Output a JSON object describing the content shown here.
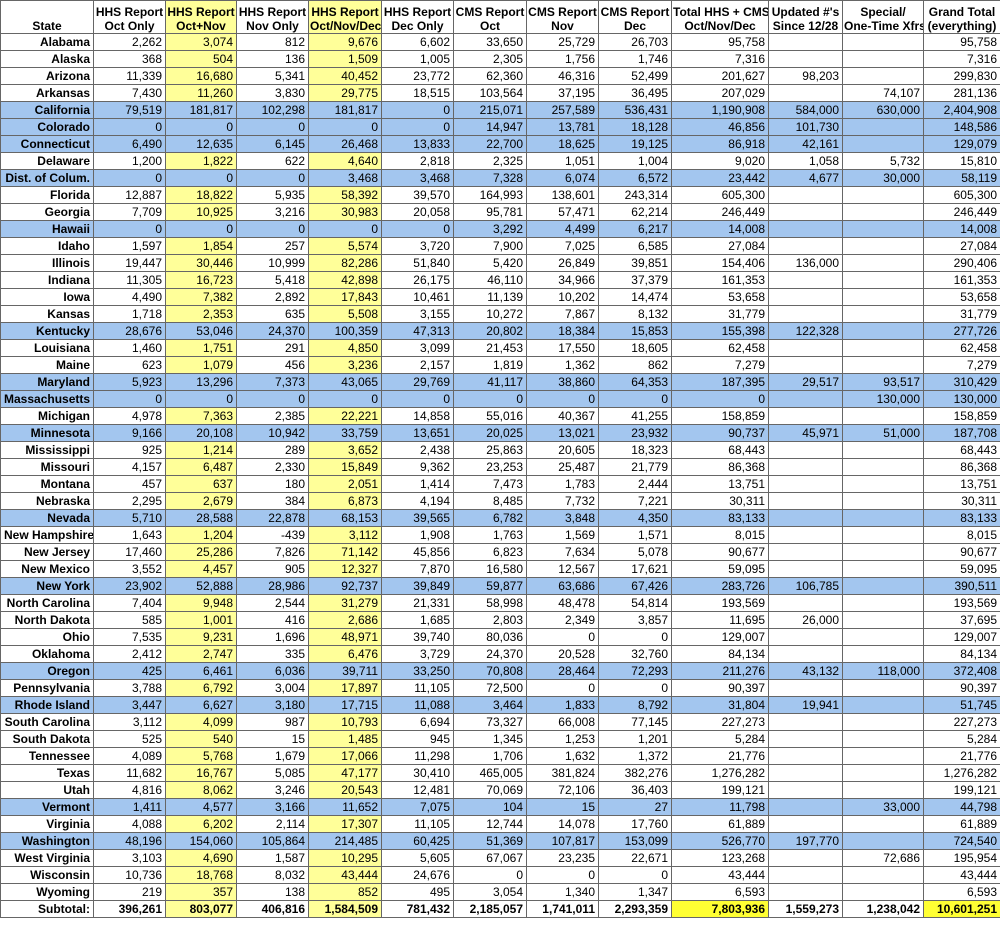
{
  "table": {
    "header": [
      [
        "State"
      ],
      [
        "HHS Report",
        "Oct Only"
      ],
      [
        "HHS Report",
        "Oct+Nov"
      ],
      [
        "HHS Report",
        "Nov Only"
      ],
      [
        "HHS Report",
        "Oct/Nov/Dec"
      ],
      [
        "HHS Report",
        "Dec Only"
      ],
      [
        "CMS Report",
        "Oct"
      ],
      [
        "CMS Report",
        "Nov"
      ],
      [
        "CMS Report",
        "Dec"
      ],
      [
        "Total HHS + CMS",
        "Oct/Nov/Dec"
      ],
      [
        "Updated #'s",
        "Since 12/28"
      ],
      [
        "Special/",
        "One-Time Xfrs"
      ],
      [
        "Grand Total",
        "(everything)"
      ]
    ],
    "rows": [
      {
        "cells": [
          "Alabama",
          "2,262",
          "3,074",
          "812",
          "9,676",
          "6,602",
          "33,650",
          "25,729",
          "26,703",
          "95,758",
          null,
          null,
          "95,758"
        ]
      },
      {
        "cells": [
          "Alaska",
          "368",
          "504",
          "136",
          "1,509",
          "1,005",
          "2,305",
          "1,756",
          "1,746",
          "7,316",
          null,
          null,
          "7,316"
        ]
      },
      {
        "cells": [
          "Arizona",
          "11,339",
          "16,680",
          "5,341",
          "40,452",
          "23,772",
          "62,360",
          "46,316",
          "52,499",
          "201,627",
          "98,203",
          null,
          "299,830"
        ]
      },
      {
        "cells": [
          "Arkansas",
          "7,430",
          "11,260",
          "3,830",
          "29,775",
          "18,515",
          "103,564",
          "37,195",
          "36,495",
          "207,029",
          null,
          "74,107",
          "281,136"
        ]
      },
      {
        "cells": [
          "California",
          "79,519",
          "181,817",
          "102,298",
          "181,817",
          "0",
          "215,071",
          "257,589",
          "536,431",
          "1,190,908",
          "584,000",
          "630,000",
          "2,404,908"
        ],
        "highlight": true
      },
      {
        "cells": [
          "Colorado",
          "0",
          "0",
          "0",
          "0",
          "0",
          "14,947",
          "13,781",
          "18,128",
          "46,856",
          "101,730",
          null,
          "148,586"
        ],
        "highlight": true
      },
      {
        "cells": [
          "Connecticut",
          "6,490",
          "12,635",
          "6,145",
          "26,468",
          "13,833",
          "22,700",
          "18,625",
          "19,125",
          "86,918",
          "42,161",
          null,
          "129,079"
        ],
        "highlight": true
      },
      {
        "cells": [
          "Delaware",
          "1,200",
          "1,822",
          "622",
          "4,640",
          "2,818",
          "2,325",
          "1,051",
          "1,004",
          "9,020",
          "1,058",
          "5,732",
          "15,810"
        ]
      },
      {
        "cells": [
          "Dist. of Colum.",
          "0",
          "0",
          "0",
          "3,468",
          "3,468",
          "7,328",
          "6,074",
          "6,572",
          "23,442",
          "4,677",
          "30,000",
          "58,119"
        ],
        "highlight": true
      },
      {
        "cells": [
          "Florida",
          "12,887",
          "18,822",
          "5,935",
          "58,392",
          "39,570",
          "164,993",
          "138,601",
          "243,314",
          "605,300",
          null,
          null,
          "605,300"
        ]
      },
      {
        "cells": [
          "Georgia",
          "7,709",
          "10,925",
          "3,216",
          "30,983",
          "20,058",
          "95,781",
          "57,471",
          "62,214",
          "246,449",
          null,
          null,
          "246,449"
        ]
      },
      {
        "cells": [
          "Hawaii",
          "0",
          "0",
          "0",
          "0",
          "0",
          "3,292",
          "4,499",
          "6,217",
          "14,008",
          null,
          null,
          "14,008"
        ],
        "highlight": true
      },
      {
        "cells": [
          "Idaho",
          "1,597",
          "1,854",
          "257",
          "5,574",
          "3,720",
          "7,900",
          "7,025",
          "6,585",
          "27,084",
          null,
          null,
          "27,084"
        ]
      },
      {
        "cells": [
          "Illinois",
          "19,447",
          "30,446",
          "10,999",
          "82,286",
          "51,840",
          "5,420",
          "26,849",
          "39,851",
          "154,406",
          "136,000",
          null,
          "290,406"
        ]
      },
      {
        "cells": [
          "Indiana",
          "11,305",
          "16,723",
          "5,418",
          "42,898",
          "26,175",
          "46,110",
          "34,966",
          "37,379",
          "161,353",
          null,
          null,
          "161,353"
        ]
      },
      {
        "cells": [
          "Iowa",
          "4,490",
          "7,382",
          "2,892",
          "17,843",
          "10,461",
          "11,139",
          "10,202",
          "14,474",
          "53,658",
          null,
          null,
          "53,658"
        ]
      },
      {
        "cells": [
          "Kansas",
          "1,718",
          "2,353",
          "635",
          "5,508",
          "3,155",
          "10,272",
          "7,867",
          "8,132",
          "31,779",
          null,
          null,
          "31,779"
        ]
      },
      {
        "cells": [
          "Kentucky",
          "28,676",
          "53,046",
          "24,370",
          "100,359",
          "47,313",
          "20,802",
          "18,384",
          "15,853",
          "155,398",
          "122,328",
          null,
          "277,726"
        ],
        "highlight": true
      },
      {
        "cells": [
          "Louisiana",
          "1,460",
          "1,751",
          "291",
          "4,850",
          "3,099",
          "21,453",
          "17,550",
          "18,605",
          "62,458",
          null,
          null,
          "62,458"
        ]
      },
      {
        "cells": [
          "Maine",
          "623",
          "1,079",
          "456",
          "3,236",
          "2,157",
          "1,819",
          "1,362",
          "862",
          "7,279",
          null,
          null,
          "7,279"
        ]
      },
      {
        "cells": [
          "Maryland",
          "5,923",
          "13,296",
          "7,373",
          "43,065",
          "29,769",
          "41,117",
          "38,860",
          "64,353",
          "187,395",
          "29,517",
          "93,517",
          "310,429"
        ],
        "highlight": true
      },
      {
        "cells": [
          "Massachusetts",
          "0",
          "0",
          "0",
          "0",
          "0",
          "0",
          "0",
          "0",
          "0",
          null,
          "130,000",
          "130,000"
        ],
        "highlight": true
      },
      {
        "cells": [
          "Michigan",
          "4,978",
          "7,363",
          "2,385",
          "22,221",
          "14,858",
          "55,016",
          "40,367",
          "41,255",
          "158,859",
          null,
          null,
          "158,859"
        ]
      },
      {
        "cells": [
          "Minnesota",
          "9,166",
          "20,108",
          "10,942",
          "33,759",
          "13,651",
          "20,025",
          "13,021",
          "23,932",
          "90,737",
          "45,971",
          "51,000",
          "187,708"
        ],
        "highlight": true
      },
      {
        "cells": [
          "Mississippi",
          "925",
          "1,214",
          "289",
          "3,652",
          "2,438",
          "25,863",
          "20,605",
          "18,323",
          "68,443",
          null,
          null,
          "68,443"
        ]
      },
      {
        "cells": [
          "Missouri",
          "4,157",
          "6,487",
          "2,330",
          "15,849",
          "9,362",
          "23,253",
          "25,487",
          "21,779",
          "86,368",
          null,
          null,
          "86,368"
        ]
      },
      {
        "cells": [
          "Montana",
          "457",
          "637",
          "180",
          "2,051",
          "1,414",
          "7,473",
          "1,783",
          "2,444",
          "13,751",
          null,
          null,
          "13,751"
        ]
      },
      {
        "cells": [
          "Nebraska",
          "2,295",
          "2,679",
          "384",
          "6,873",
          "4,194",
          "8,485",
          "7,732",
          "7,221",
          "30,311",
          null,
          null,
          "30,311"
        ]
      },
      {
        "cells": [
          "Nevada",
          "5,710",
          "28,588",
          "22,878",
          "68,153",
          "39,565",
          "6,782",
          "3,848",
          "4,350",
          "83,133",
          null,
          null,
          "83,133"
        ],
        "highlight": true
      },
      {
        "cells": [
          "New Hampshire",
          "1,643",
          "1,204",
          "-439",
          "3,112",
          "1,908",
          "1,763",
          "1,569",
          "1,571",
          "8,015",
          null,
          null,
          "8,015"
        ]
      },
      {
        "cells": [
          "New Jersey",
          "17,460",
          "25,286",
          "7,826",
          "71,142",
          "45,856",
          "6,823",
          "7,634",
          "5,078",
          "90,677",
          null,
          null,
          "90,677"
        ]
      },
      {
        "cells": [
          "New Mexico",
          "3,552",
          "4,457",
          "905",
          "12,327",
          "7,870",
          "16,580",
          "12,567",
          "17,621",
          "59,095",
          null,
          null,
          "59,095"
        ]
      },
      {
        "cells": [
          "New York",
          "23,902",
          "52,888",
          "28,986",
          "92,737",
          "39,849",
          "59,877",
          "63,686",
          "67,426",
          "283,726",
          "106,785",
          null,
          "390,511"
        ],
        "highlight": true
      },
      {
        "cells": [
          "North Carolina",
          "7,404",
          "9,948",
          "2,544",
          "31,279",
          "21,331",
          "58,998",
          "48,478",
          "54,814",
          "193,569",
          null,
          null,
          "193,569"
        ]
      },
      {
        "cells": [
          "North Dakota",
          "585",
          "1,001",
          "416",
          "2,686",
          "1,685",
          "2,803",
          "2,349",
          "3,857",
          "11,695",
          "26,000",
          null,
          "37,695"
        ]
      },
      {
        "cells": [
          "Ohio",
          "7,535",
          "9,231",
          "1,696",
          "48,971",
          "39,740",
          "80,036",
          "0",
          "0",
          "129,007",
          null,
          null,
          "129,007"
        ]
      },
      {
        "cells": [
          "Oklahoma",
          "2,412",
          "2,747",
          "335",
          "6,476",
          "3,729",
          "24,370",
          "20,528",
          "32,760",
          "84,134",
          null,
          null,
          "84,134"
        ]
      },
      {
        "cells": [
          "Oregon",
          "425",
          "6,461",
          "6,036",
          "39,711",
          "33,250",
          "70,808",
          "28,464",
          "72,293",
          "211,276",
          "43,132",
          "118,000",
          "372,408"
        ],
        "highlight": true
      },
      {
        "cells": [
          "Pennsylvania",
          "3,788",
          "6,792",
          "3,004",
          "17,897",
          "11,105",
          "72,500",
          "0",
          "0",
          "90,397",
          null,
          null,
          "90,397"
        ]
      },
      {
        "cells": [
          "Rhode Island",
          "3,447",
          "6,627",
          "3,180",
          "17,715",
          "11,088",
          "3,464",
          "1,833",
          "8,792",
          "31,804",
          "19,941",
          null,
          "51,745"
        ],
        "highlight": true
      },
      {
        "cells": [
          "South Carolina",
          "3,112",
          "4,099",
          "987",
          "10,793",
          "6,694",
          "73,327",
          "66,008",
          "77,145",
          "227,273",
          null,
          null,
          "227,273"
        ]
      },
      {
        "cells": [
          "South Dakota",
          "525",
          "540",
          "15",
          "1,485",
          "945",
          "1,345",
          "1,253",
          "1,201",
          "5,284",
          null,
          null,
          "5,284"
        ]
      },
      {
        "cells": [
          "Tennessee",
          "4,089",
          "5,768",
          "1,679",
          "17,066",
          "11,298",
          "1,706",
          "1,632",
          "1,372",
          "21,776",
          null,
          null,
          "21,776"
        ]
      },
      {
        "cells": [
          "Texas",
          "11,682",
          "16,767",
          "5,085",
          "47,177",
          "30,410",
          "465,005",
          "381,824",
          "382,276",
          "1,276,282",
          null,
          null,
          "1,276,282"
        ]
      },
      {
        "cells": [
          "Utah",
          "4,816",
          "8,062",
          "3,246",
          "20,543",
          "12,481",
          "70,069",
          "72,106",
          "36,403",
          "199,121",
          null,
          null,
          "199,121"
        ]
      },
      {
        "cells": [
          "Vermont",
          "1,411",
          "4,577",
          "3,166",
          "11,652",
          "7,075",
          "104",
          "15",
          "27",
          "11,798",
          null,
          "33,000",
          "44,798"
        ],
        "highlight": true
      },
      {
        "cells": [
          "Virginia",
          "4,088",
          "6,202",
          "2,114",
          "17,307",
          "11,105",
          "12,744",
          "14,078",
          "17,760",
          "61,889",
          null,
          null,
          "61,889"
        ]
      },
      {
        "cells": [
          "Washington",
          "48,196",
          "154,060",
          "105,864",
          "214,485",
          "60,425",
          "51,369",
          "107,817",
          "153,099",
          "526,770",
          "197,770",
          null,
          "724,540"
        ],
        "highlight": true
      },
      {
        "cells": [
          "West Virginia",
          "3,103",
          "4,690",
          "1,587",
          "10,295",
          "5,605",
          "67,067",
          "23,235",
          "22,671",
          "123,268",
          null,
          "72,686",
          "195,954"
        ]
      },
      {
        "cells": [
          "Wisconsin",
          "10,736",
          "18,768",
          "8,032",
          "43,444",
          "24,676",
          "0",
          "0",
          "0",
          "43,444",
          null,
          null,
          "43,444"
        ]
      },
      {
        "cells": [
          "Wyoming",
          "219",
          "357",
          "138",
          "852",
          "495",
          "3,054",
          "1,340",
          "1,347",
          "6,593",
          null,
          null,
          "6,593"
        ]
      }
    ],
    "subtotal": [
      "Subtotal:",
      "396,261",
      "803,077",
      "406,816",
      "1,584,509",
      "781,432",
      "2,185,057",
      "1,741,011",
      "2,293,359",
      "7,803,936",
      "1,559,273",
      "1,238,042",
      "10,601,251"
    ]
  }
}
